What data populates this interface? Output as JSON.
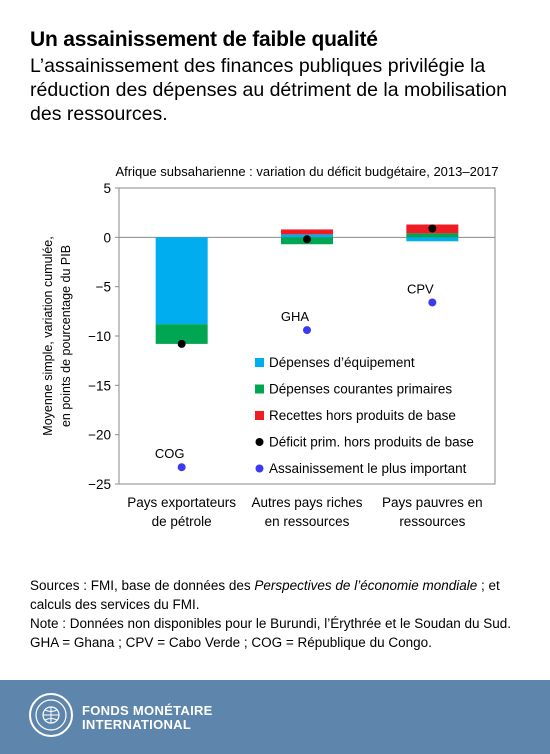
{
  "header": {
    "title": "Un assainissement de faible qualité",
    "subtitle": "L’assainissement des finances publiques privilégie la réduction des dépenses au détriment de la mobilisation des ressources."
  },
  "chart_data": {
    "type": "bar",
    "title": "Afrique subsaharienne : variation du déficit budgétaire, 2013–2017",
    "ylabel_lines": [
      "Moyenne simple, variation cumulée,",
      "en points de pourcentage du PIB"
    ],
    "ylim": [
      -25,
      5
    ],
    "yticks": [
      5,
      0,
      -5,
      -10,
      -15,
      -20,
      -25
    ],
    "categories": [
      [
        "Pays exportateurs",
        "de pétrole"
      ],
      [
        "Autres pays riches",
        "en ressources"
      ],
      [
        "Pays pauvres en",
        "ressources"
      ]
    ],
    "series": [
      {
        "name": "Dépenses d’équipement",
        "kind": "bar",
        "color": "#00adef",
        "values": [
          -8.8,
          0.3,
          -0.4
        ]
      },
      {
        "name": "Dépenses courantes primaires",
        "kind": "bar",
        "color": "#00a651",
        "values": [
          -2.0,
          -0.7,
          0.4
        ]
      },
      {
        "name": "Recettes hors produits de base",
        "kind": "bar",
        "color": "#ee1c25",
        "values": [
          0.0,
          0.5,
          0.9
        ]
      },
      {
        "name": "Déficit prim. hors produits de base",
        "kind": "point",
        "color": "#000000",
        "values": [
          -10.8,
          -0.2,
          0.9
        ]
      },
      {
        "name": "Assainissement le plus important",
        "kind": "point",
        "color": "#3a3af0",
        "values": [
          -23.3,
          -9.4,
          -6.6
        ],
        "labels": [
          "COG",
          "GHA",
          "CPV"
        ]
      }
    ],
    "grid": false,
    "legend": "bottom-right"
  },
  "notes": {
    "sources_prefix": "Sources : FMI, base de données des ",
    "sources_italic": "Perspectives de l’économie mondiale",
    "sources_suffix": " ; et calculs des services du FMI.",
    "note": "Note : Données non disponibles pour le Burundi, l’Érythrée et le Soudan du Sud.",
    "abbrev": "GHA = Ghana ; CPV = Cabo Verde ; COG = République du Congo."
  },
  "footer": {
    "org_line1": "FONDS MONÉTAIRE",
    "org_line2": "INTERNATIONAL",
    "seal_icon": "imf-seal-icon"
  }
}
